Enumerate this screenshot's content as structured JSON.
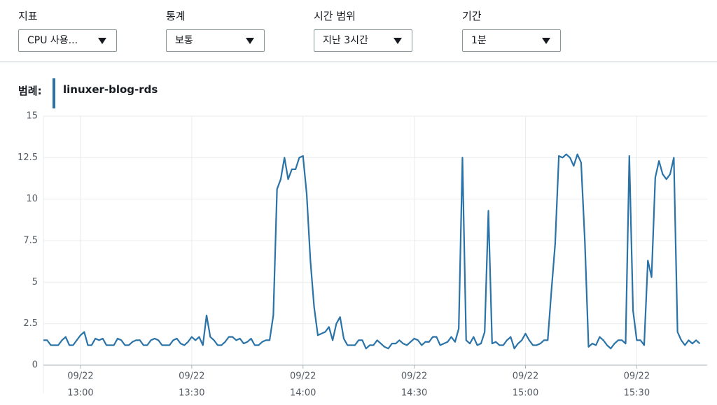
{
  "controls": [
    {
      "label": "지표",
      "value": "CPU 사용..."
    },
    {
      "label": "통계",
      "value": "보통"
    },
    {
      "label": "시간 범위",
      "value": "지난 3시간"
    },
    {
      "label": "기간",
      "value": "1분"
    }
  ],
  "chart_data": {
    "type": "line",
    "legend_label": "범례:",
    "x": [
      "12:50",
      "12:51",
      "12:52",
      "12:53",
      "12:54",
      "12:55",
      "12:56",
      "12:57",
      "12:58",
      "12:59",
      "13:00",
      "13:01",
      "13:02",
      "13:03",
      "13:04",
      "13:05",
      "13:06",
      "13:07",
      "13:08",
      "13:09",
      "13:10",
      "13:11",
      "13:12",
      "13:13",
      "13:14",
      "13:15",
      "13:16",
      "13:17",
      "13:18",
      "13:19",
      "13:20",
      "13:21",
      "13:22",
      "13:23",
      "13:24",
      "13:25",
      "13:26",
      "13:27",
      "13:28",
      "13:29",
      "13:30",
      "13:31",
      "13:32",
      "13:33",
      "13:34",
      "13:35",
      "13:36",
      "13:37",
      "13:38",
      "13:39",
      "13:40",
      "13:41",
      "13:42",
      "13:43",
      "13:44",
      "13:45",
      "13:46",
      "13:47",
      "13:48",
      "13:49",
      "13:50",
      "13:51",
      "13:52",
      "13:53",
      "13:54",
      "13:55",
      "13:56",
      "13:57",
      "13:58",
      "13:59",
      "14:00",
      "14:01",
      "14:02",
      "14:03",
      "14:04",
      "14:05",
      "14:06",
      "14:07",
      "14:08",
      "14:09",
      "14:10",
      "14:11",
      "14:12",
      "14:13",
      "14:14",
      "14:15",
      "14:16",
      "14:17",
      "14:18",
      "14:19",
      "14:20",
      "14:21",
      "14:22",
      "14:23",
      "14:24",
      "14:25",
      "14:26",
      "14:27",
      "14:28",
      "14:29",
      "14:30",
      "14:31",
      "14:32",
      "14:33",
      "14:34",
      "14:35",
      "14:36",
      "14:37",
      "14:38",
      "14:39",
      "14:40",
      "14:41",
      "14:42",
      "14:43",
      "14:44",
      "14:45",
      "14:46",
      "14:47",
      "14:48",
      "14:49",
      "14:50",
      "14:51",
      "14:52",
      "14:53",
      "14:54",
      "14:55",
      "14:56",
      "14:57",
      "14:58",
      "14:59",
      "15:00",
      "15:01",
      "15:02",
      "15:03",
      "15:04",
      "15:05",
      "15:06",
      "15:07",
      "15:08",
      "15:09",
      "15:10",
      "15:11",
      "15:12",
      "15:13",
      "15:14",
      "15:15",
      "15:16",
      "15:17",
      "15:18",
      "15:19",
      "15:20",
      "15:21",
      "15:22",
      "15:23",
      "15:24",
      "15:25",
      "15:26",
      "15:27",
      "15:28",
      "15:29",
      "15:30",
      "15:31",
      "15:32",
      "15:33",
      "15:34",
      "15:35",
      "15:36",
      "15:37",
      "15:38",
      "15:39",
      "15:40",
      "15:41",
      "15:42",
      "15:43",
      "15:44",
      "15:45",
      "15:46",
      "15:47"
    ],
    "xlim": [
      "12:50",
      "15:49"
    ],
    "xticks": [
      {
        "value": "13:00",
        "label": [
          "09/22",
          "13:00"
        ]
      },
      {
        "value": "13:30",
        "label": [
          "09/22",
          "13:30"
        ]
      },
      {
        "value": "14:00",
        "label": [
          "09/22",
          "14:00"
        ]
      },
      {
        "value": "14:30",
        "label": [
          "09/22",
          "14:30"
        ]
      },
      {
        "value": "15:00",
        "label": [
          "09/22",
          "15:00"
        ]
      },
      {
        "value": "15:30",
        "label": [
          "09/22",
          "15:30"
        ]
      }
    ],
    "ylim": [
      0,
      15
    ],
    "yticks": [
      0,
      2.5,
      5,
      7.5,
      10,
      12.5,
      15
    ],
    "grid": true,
    "series": [
      {
        "name": "linuxer-blog-rds",
        "color": "#2a73a8",
        "values": [
          1.5,
          1.5,
          1.2,
          1.2,
          1.2,
          1.5,
          1.7,
          1.2,
          1.2,
          1.5,
          1.8,
          2.0,
          1.2,
          1.2,
          1.6,
          1.5,
          1.6,
          1.2,
          1.2,
          1.2,
          1.6,
          1.5,
          1.2,
          1.2,
          1.4,
          1.5,
          1.5,
          1.2,
          1.2,
          1.5,
          1.6,
          1.5,
          1.2,
          1.2,
          1.2,
          1.5,
          1.6,
          1.3,
          1.2,
          1.4,
          1.7,
          1.5,
          1.7,
          1.2,
          3.0,
          1.7,
          1.5,
          1.2,
          1.2,
          1.4,
          1.7,
          1.7,
          1.5,
          1.6,
          1.3,
          1.4,
          1.6,
          1.2,
          1.2,
          1.4,
          1.5,
          1.5,
          3.0,
          10.6,
          11.2,
          12.5,
          11.2,
          11.8,
          11.8,
          12.5,
          12.6,
          10.3,
          6.3,
          3.5,
          1.8,
          1.9,
          2.0,
          2.3,
          1.5,
          2.5,
          2.9,
          1.6,
          1.2,
          1.2,
          1.2,
          1.5,
          1.5,
          1.0,
          1.2,
          1.2,
          1.5,
          1.3,
          1.1,
          1.0,
          1.3,
          1.3,
          1.5,
          1.3,
          1.2,
          1.4,
          1.6,
          1.5,
          1.2,
          1.4,
          1.4,
          1.7,
          1.7,
          1.2,
          1.3,
          1.4,
          1.7,
          1.4,
          2.2,
          12.5,
          1.5,
          1.3,
          1.7,
          1.2,
          1.3,
          2.0,
          9.3,
          1.3,
          1.4,
          1.2,
          1.2,
          1.5,
          1.7,
          1.0,
          1.3,
          1.5,
          1.9,
          1.5,
          1.2,
          1.2,
          1.3,
          1.5,
          1.5,
          4.5,
          7.3,
          12.6,
          12.5,
          12.7,
          12.5,
          12.0,
          12.7,
          12.2,
          7.5,
          1.1,
          1.3,
          1.2,
          1.7,
          1.5,
          1.2,
          1.0,
          1.3,
          1.5,
          1.5,
          1.3,
          12.6,
          3.3,
          1.5,
          1.5,
          1.2,
          6.3,
          5.3,
          11.3,
          12.3,
          11.5,
          11.2,
          11.5,
          12.5,
          2.0,
          1.5,
          1.2,
          1.5,
          1.3,
          1.5,
          1.3
        ]
      }
    ]
  }
}
